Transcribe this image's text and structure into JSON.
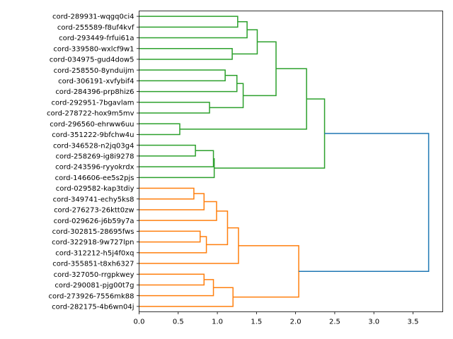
{
  "chart_data": {
    "type": "dendrogram",
    "title": "",
    "xlabel": "",
    "ylabel": "",
    "xlim": [
      0,
      3.88
    ],
    "xticks": [
      "0.0",
      "0.5",
      "1.0",
      "1.5",
      "2.0",
      "2.5",
      "3.0",
      "3.5"
    ],
    "xtick_values": [
      0,
      0.5,
      1.0,
      1.5,
      2.0,
      2.5,
      3.0,
      3.5
    ],
    "leaves": [
      "cord-289931-wqgq0ci4",
      "cord-255589-f8uf4kvf",
      "cord-293449-frfui61a",
      "cord-339580-wxlcf9w1",
      "cord-034975-gud4dow5",
      "cord-258550-8ynduijm",
      "cord-306191-xvfybif4",
      "cord-284396-prp8hiz6",
      "cord-292951-7bgavlam",
      "cord-278722-hox9m5mv",
      "cord-296560-ehrww6uu",
      "cord-351222-9bfchw4u",
      "cord-346528-n2jq03g4",
      "cord-258269-ig8i9278",
      "cord-243596-ryyokrdx",
      "cord-146606-ee5s2pjs",
      "cord-029582-kap3tdiy",
      "cord-349741-echy5ks8",
      "cord-276273-26ktt0zw",
      "cord-029626-j6b59y7a",
      "cord-302815-28695fws",
      "cord-322918-9w727lpn",
      "cord-312212-h5j4f0xq",
      "cord-355851-t8xh6327",
      "cord-327050-rrgpkwey",
      "cord-290081-pjg00t7g",
      "cord-273926-7556mk88",
      "cord-282175-4b6wn04j"
    ],
    "colors": {
      "green": "#2ca02c",
      "orange": "#ff7f0e",
      "blue": "#1f77b4"
    },
    "linkage": [
      [
        0,
        1,
        1.26,
        "green"
      ],
      [
        28,
        2,
        1.38,
        "green"
      ],
      [
        3,
        4,
        1.19,
        "green"
      ],
      [
        29,
        30,
        1.51,
        "green"
      ],
      [
        5,
        6,
        1.1,
        "green"
      ],
      [
        32,
        7,
        1.25,
        "green"
      ],
      [
        8,
        9,
        0.9,
        "green"
      ],
      [
        33,
        34,
        1.33,
        "green"
      ],
      [
        31,
        35,
        1.75,
        "green"
      ],
      [
        10,
        11,
        0.52,
        "green"
      ],
      [
        36,
        37,
        2.14,
        "green"
      ],
      [
        12,
        13,
        0.72,
        "green"
      ],
      [
        39,
        14,
        0.95,
        "green"
      ],
      [
        40,
        15,
        0.96,
        "green"
      ],
      [
        38,
        41,
        2.37,
        "green"
      ],
      [
        16,
        17,
        0.7,
        "orange"
      ],
      [
        43,
        18,
        0.83,
        "orange"
      ],
      [
        44,
        19,
        0.99,
        "orange"
      ],
      [
        20,
        21,
        0.78,
        "orange"
      ],
      [
        46,
        22,
        0.86,
        "orange"
      ],
      [
        45,
        47,
        1.13,
        "orange"
      ],
      [
        48,
        23,
        1.27,
        "orange"
      ],
      [
        24,
        25,
        0.83,
        "orange"
      ],
      [
        50,
        26,
        0.95,
        "orange"
      ],
      [
        51,
        27,
        1.2,
        "orange"
      ],
      [
        49,
        52,
        2.04,
        "orange"
      ],
      [
        42,
        53,
        3.7,
        "blue"
      ]
    ]
  }
}
